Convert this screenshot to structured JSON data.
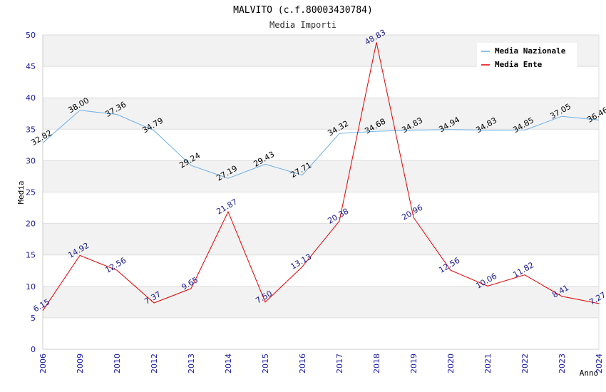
{
  "chart_data": {
    "type": "line",
    "title": "MALVITO (c.f.80003430784)",
    "subtitle": "Media Importi",
    "xlabel": "Anno",
    "ylabel": "Media",
    "ylim": [
      0,
      50
    ],
    "yticks": [
      0,
      5,
      10,
      15,
      20,
      25,
      30,
      35,
      40,
      45,
      50
    ],
    "grid": true,
    "legend_position": "top-right",
    "categories": [
      "2006",
      "2009",
      "2010",
      "2012",
      "2013",
      "2014",
      "2015",
      "2016",
      "2017",
      "2018",
      "2019",
      "2020",
      "2021",
      "2022",
      "2023",
      "2024"
    ],
    "series": [
      {
        "name": "Media Nazionale",
        "color": "#6aaee6",
        "label_color": "#000000",
        "values": [
          32.82,
          38.0,
          37.36,
          34.79,
          29.24,
          27.19,
          29.43,
          27.71,
          34.32,
          34.68,
          34.83,
          34.94,
          34.83,
          34.85,
          37.05,
          36.46
        ],
        "labels": [
          "32.82",
          "38.00",
          "37.36",
          "34.79",
          "29.24",
          "27.19",
          "29.43",
          "27.71",
          "34.32",
          "34.68",
          "34.83",
          "34.94",
          "34.83",
          "34.85",
          "37.05",
          "36.46"
        ]
      },
      {
        "name": "Media Ente",
        "color": "#e00000",
        "label_color": "#1a1a8c",
        "values": [
          6.15,
          14.92,
          12.56,
          7.37,
          9.65,
          21.87,
          7.5,
          13.13,
          20.38,
          48.83,
          20.96,
          12.56,
          10.06,
          11.82,
          8.41,
          7.27
        ],
        "labels": [
          "6.15",
          "14.92",
          "12.56",
          "7.37",
          "9.65",
          "21.87",
          "7.50",
          "13.13",
          "20.38",
          "48.83",
          "20.96",
          "12.56",
          "10.06",
          "11.82",
          "8.41",
          "7.27"
        ]
      }
    ]
  }
}
